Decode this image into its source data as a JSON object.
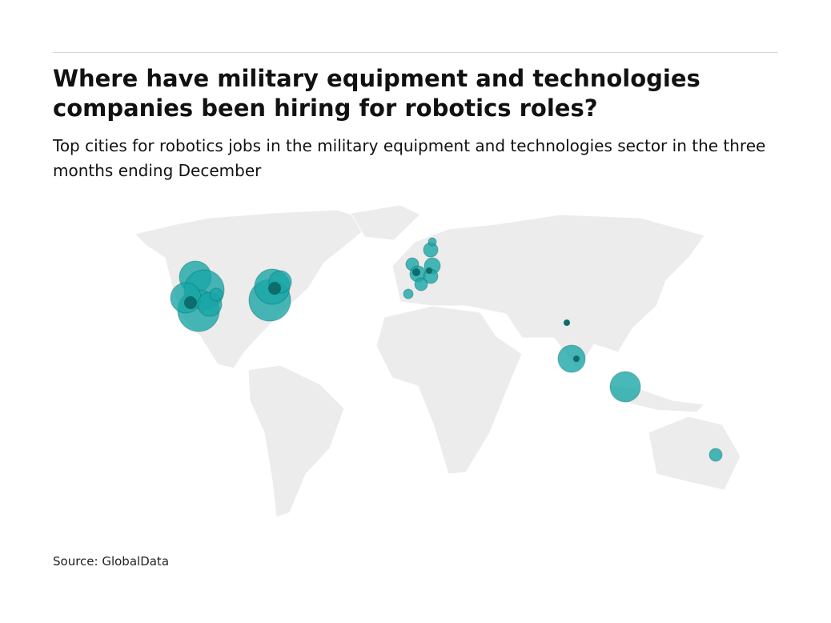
{
  "header": {
    "title": "Where have military equipment and technologies companies been hiring for robotics roles?",
    "subtitle": "Top cities for robotics jobs in the military equipment and technologies sector in the three months ending December"
  },
  "footer": {
    "source": "Source: GlobalData"
  }
}
